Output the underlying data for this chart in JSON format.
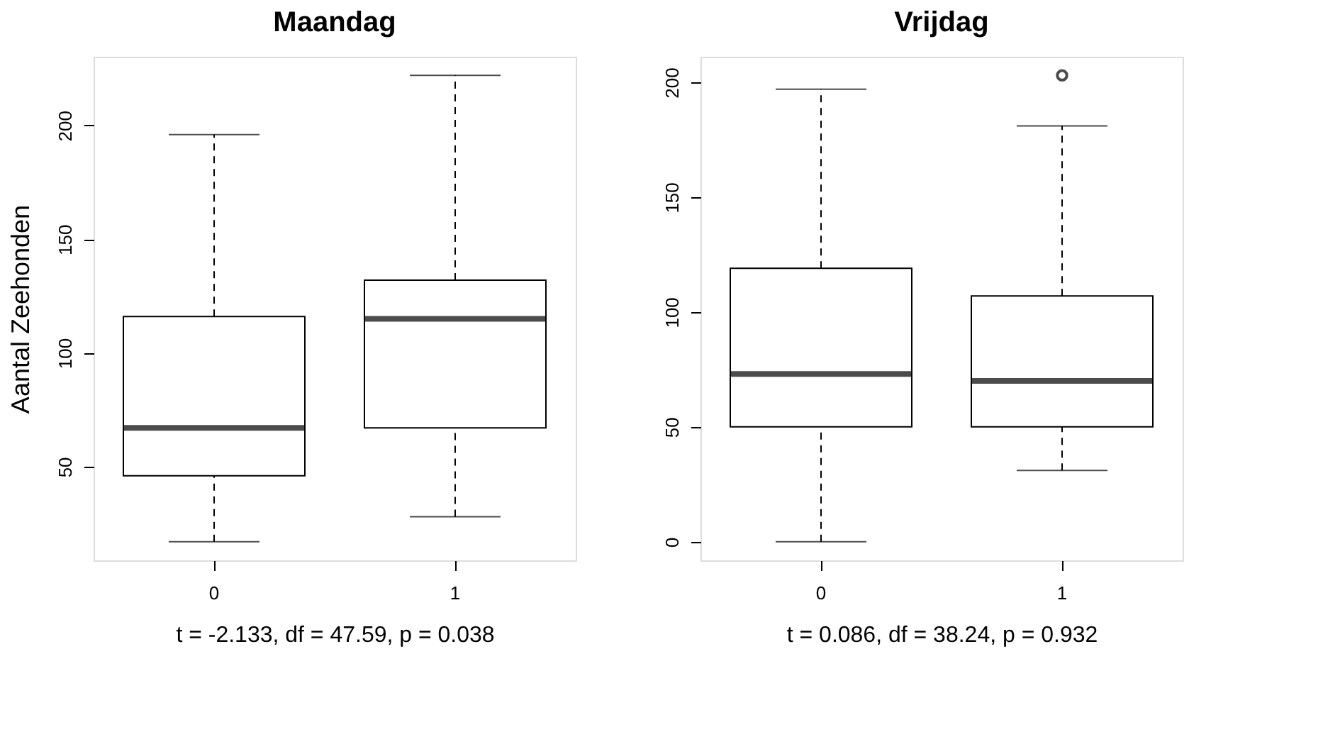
{
  "chart_data": [
    {
      "type": "box",
      "title": "Maandag",
      "xlabel": "t = -2.133, df = 47.59, p = 0.038",
      "ylabel": "Aantal Zeehonden",
      "categories": [
        "0",
        "1"
      ],
      "boxes": [
        {
          "low": 17,
          "q1": 46,
          "median": 67,
          "q3": 116,
          "high": 196
        },
        {
          "low": 28,
          "q1": 67,
          "median": 115,
          "q3": 132,
          "high": 222
        }
      ],
      "ylim": [
        8.8,
        230.2
      ],
      "yticks": [
        50,
        100,
        150,
        200
      ],
      "grid": false
    },
    {
      "type": "box",
      "title": "Vrijdag",
      "xlabel": "t = 0.086, df = 38.24, p = 0.932",
      "categories": [
        "0",
        "1"
      ],
      "boxes": [
        {
          "low": 0,
          "q1": 50,
          "median": 73,
          "q3": 119,
          "high": 197
        },
        {
          "low": 31,
          "q1": 50,
          "median": 70,
          "q3": 107,
          "high": 181,
          "outliers": [
            203
          ]
        }
      ],
      "ylim": [
        -8.1,
        211.1
      ],
      "yticks": [
        0,
        50,
        100,
        150,
        200
      ],
      "grid": false
    }
  ]
}
